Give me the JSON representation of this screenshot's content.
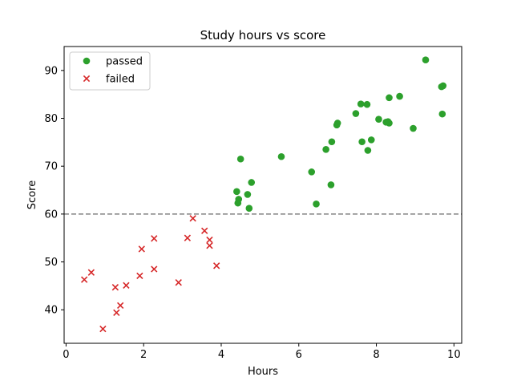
{
  "chart_data": {
    "type": "scatter",
    "title": "Study hours vs score",
    "xlabel": "Hours",
    "ylabel": "Score",
    "xlim": [
      -0.05,
      10.2
    ],
    "ylim": [
      33.0,
      95.0
    ],
    "xticks": [
      0,
      2,
      4,
      6,
      8,
      10
    ],
    "yticks": [
      40,
      50,
      60,
      70,
      80,
      90
    ],
    "xtick_labels": [
      "0",
      "2",
      "4",
      "6",
      "8",
      "10"
    ],
    "ytick_labels": [
      "40",
      "50",
      "60",
      "70",
      "80",
      "90"
    ],
    "grid": false,
    "legend_position": "top-left",
    "threshold": {
      "y": 60,
      "style": "dashed",
      "color": "#808080"
    },
    "series": [
      {
        "name": "passed",
        "marker": "circle",
        "color": "#2ca02c",
        "points": [
          [
            4.4,
            64.7
          ],
          [
            4.45,
            63.1
          ],
          [
            4.43,
            62.3
          ],
          [
            4.5,
            71.5
          ],
          [
            4.68,
            64.1
          ],
          [
            4.72,
            61.2
          ],
          [
            4.78,
            66.6
          ],
          [
            5.55,
            72.0
          ],
          [
            6.33,
            68.8
          ],
          [
            6.45,
            62.1
          ],
          [
            6.7,
            73.5
          ],
          [
            6.83,
            66.1
          ],
          [
            6.85,
            75.1
          ],
          [
            6.98,
            78.6
          ],
          [
            7.0,
            79.0
          ],
          [
            7.47,
            81.0
          ],
          [
            7.6,
            83.0
          ],
          [
            7.63,
            75.1
          ],
          [
            7.76,
            82.9
          ],
          [
            7.78,
            73.3
          ],
          [
            7.87,
            75.5
          ],
          [
            8.06,
            79.8
          ],
          [
            8.25,
            79.2
          ],
          [
            8.3,
            79.3
          ],
          [
            8.33,
            79.0
          ],
          [
            8.33,
            84.3
          ],
          [
            8.6,
            84.6
          ],
          [
            8.95,
            77.9
          ],
          [
            9.27,
            92.2
          ],
          [
            9.68,
            86.6
          ],
          [
            9.72,
            86.8
          ],
          [
            9.7,
            80.9
          ]
        ]
      },
      {
        "name": "failed",
        "marker": "x",
        "color": "#d62728",
        "points": [
          [
            0.47,
            46.3
          ],
          [
            0.65,
            47.8
          ],
          [
            0.95,
            36.0
          ],
          [
            1.27,
            44.7
          ],
          [
            1.3,
            39.4
          ],
          [
            1.4,
            40.9
          ],
          [
            1.55,
            45.1
          ],
          [
            1.9,
            47.1
          ],
          [
            1.95,
            52.7
          ],
          [
            2.27,
            48.5
          ],
          [
            2.27,
            54.9
          ],
          [
            2.9,
            45.7
          ],
          [
            3.13,
            55.0
          ],
          [
            3.27,
            59.1
          ],
          [
            3.57,
            56.5
          ],
          [
            3.7,
            54.6
          ],
          [
            3.7,
            53.4
          ],
          [
            3.88,
            49.2
          ]
        ]
      }
    ]
  }
}
